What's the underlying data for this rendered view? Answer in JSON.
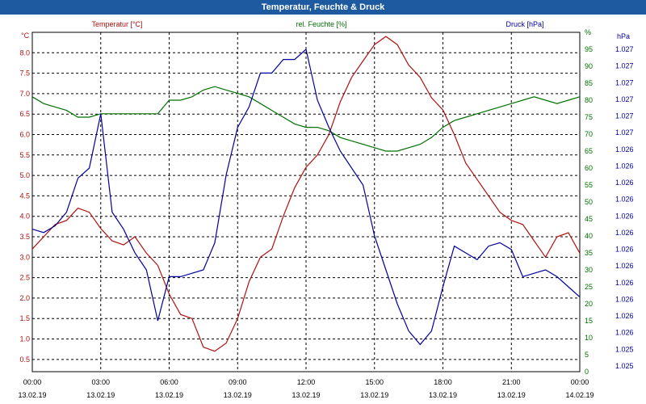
{
  "window": {
    "title": "Temperatur, Feuchte & Druck"
  },
  "colors": {
    "temperature": "#b01010",
    "humidity": "#007000",
    "pressure": "#0000a0",
    "titlebar": "#1e5aa0",
    "grid": "#000000"
  },
  "chart_data": {
    "type": "line",
    "title": "Temperatur, Feuchte & Druck",
    "grid": true,
    "x_ticks": [
      {
        "time": "00:00",
        "date": "13.02.19"
      },
      {
        "time": "03:00",
        "date": "13.02.19"
      },
      {
        "time": "06:00",
        "date": "13.02.19"
      },
      {
        "time": "09:00",
        "date": "13.02.19"
      },
      {
        "time": "12:00",
        "date": "13.02.19"
      },
      {
        "time": "15:00",
        "date": "13.02.19"
      },
      {
        "time": "18:00",
        "date": "13.02.19"
      },
      {
        "time": "21:00",
        "date": "13.02.19"
      },
      {
        "time": "00:00",
        "date": "14.02.19"
      }
    ],
    "x_range_hours": [
      0,
      24
    ],
    "axes": {
      "left": {
        "label": "Temperatur [°C]",
        "unit": "°C",
        "ticks": [
          "0.5",
          "1.0",
          "1.5",
          "2.0",
          "2.5",
          "3.0",
          "3.5",
          "4.0",
          "4.5",
          "5.0",
          "5.5",
          "6.0",
          "6.5",
          "7.0",
          "7.5",
          "8.0"
        ],
        "range": [
          0.2,
          8.5
        ]
      },
      "right1": {
        "label": "rel. Feuchte [%]",
        "unit": "%",
        "ticks": [
          "0",
          "5",
          "10",
          "15",
          "20",
          "25",
          "30",
          "35",
          "40",
          "45",
          "50",
          "55",
          "60",
          "65",
          "70",
          "75",
          "80",
          "85",
          "90",
          "95",
          "%"
        ],
        "range": [
          0,
          100
        ]
      },
      "right2": {
        "label": "Druck [hPa]",
        "unit": "hPa",
        "ticks": [
          "1.025",
          "1.025",
          "1.026",
          "1.026",
          "1.026",
          "1.026",
          "1.026",
          "1.026",
          "1.026",
          "1.026",
          "1.026",
          "1.026",
          "1.026",
          "1.026",
          "1.027",
          "1.027",
          "1.027",
          "1.027",
          "1.027",
          "1.027"
        ]
      }
    },
    "series": [
      {
        "name": "Temperatur [°C]",
        "axis": "left",
        "x_hours": [
          0,
          0.5,
          1,
          1.5,
          2,
          2.5,
          3,
          3.5,
          4,
          4.5,
          5,
          5.5,
          6,
          6.5,
          7,
          7.5,
          8,
          8.5,
          9,
          9.5,
          10,
          10.5,
          11,
          11.5,
          12,
          12.5,
          13,
          13.5,
          14,
          14.5,
          15,
          15.5,
          16,
          16.5,
          17,
          17.5,
          18,
          18.5,
          19,
          19.5,
          20,
          20.5,
          21,
          21.5,
          22,
          22.5,
          23,
          23.5,
          24
        ],
        "values": [
          3.2,
          3.5,
          3.8,
          3.9,
          4.2,
          4.1,
          3.7,
          3.4,
          3.3,
          3.5,
          3.1,
          2.8,
          2.1,
          1.6,
          1.5,
          0.8,
          0.7,
          0.9,
          1.5,
          2.4,
          3.0,
          3.2,
          4.0,
          4.7,
          5.2,
          5.5,
          6.0,
          6.8,
          7.4,
          7.8,
          8.2,
          8.4,
          8.2,
          7.7,
          7.4,
          6.9,
          6.6,
          6.0,
          5.3,
          4.9,
          4.5,
          4.1,
          3.9,
          3.8,
          3.4,
          3.0,
          3.5,
          3.6,
          3.1
        ]
      },
      {
        "name": "rel. Feuchte [%]",
        "axis": "right1",
        "x_hours": [
          0,
          0.5,
          1,
          1.5,
          2,
          2.5,
          3,
          3.5,
          4,
          4.5,
          5,
          5.5,
          6,
          6.5,
          7,
          7.5,
          8,
          8.5,
          9,
          9.5,
          10,
          10.5,
          11,
          11.5,
          12,
          12.5,
          13,
          13.5,
          14,
          14.5,
          15,
          15.5,
          16,
          16.5,
          17,
          17.5,
          18,
          18.5,
          19,
          19.5,
          20,
          20.5,
          21,
          21.5,
          22,
          22.5,
          23,
          23.5,
          24
        ],
        "values": [
          81,
          79,
          78,
          77,
          75,
          75,
          76,
          76,
          76,
          76,
          76,
          76,
          80,
          80,
          81,
          83,
          84,
          83,
          82,
          81,
          79,
          77,
          75,
          73,
          72,
          72,
          71,
          69,
          68,
          67,
          66,
          65,
          65,
          66,
          67,
          69,
          72,
          74,
          75,
          76,
          77,
          78,
          79,
          80,
          81,
          80,
          79,
          80,
          81
        ]
      },
      {
        "name": "Druck [hPa]",
        "axis": "right2",
        "x_hours": [
          0,
          0.5,
          1,
          1.5,
          2,
          2.5,
          3,
          3.5,
          4,
          4.5,
          5,
          5.5,
          6,
          6.5,
          7,
          7.5,
          8,
          8.5,
          9,
          9.5,
          10,
          10.5,
          11,
          11.5,
          12,
          12.5,
          13,
          13.5,
          14,
          14.5,
          15,
          15.5,
          16,
          16.5,
          17,
          17.5,
          18,
          18.5,
          19,
          19.5,
          20,
          20.5,
          21,
          21.5,
          22,
          22.5,
          23,
          23.5,
          24
        ],
        "values_pct": [
          42,
          41,
          43,
          47,
          57,
          60,
          76,
          47,
          42,
          35,
          30,
          15,
          28,
          28,
          29,
          30,
          38,
          58,
          72,
          78,
          88,
          88,
          92,
          92,
          95,
          80,
          72,
          65,
          60,
          55,
          40,
          30,
          20,
          12,
          8,
          12,
          25,
          37,
          35,
          33,
          37,
          38,
          36,
          28,
          29,
          30,
          28,
          25,
          22
        ]
      }
    ]
  }
}
